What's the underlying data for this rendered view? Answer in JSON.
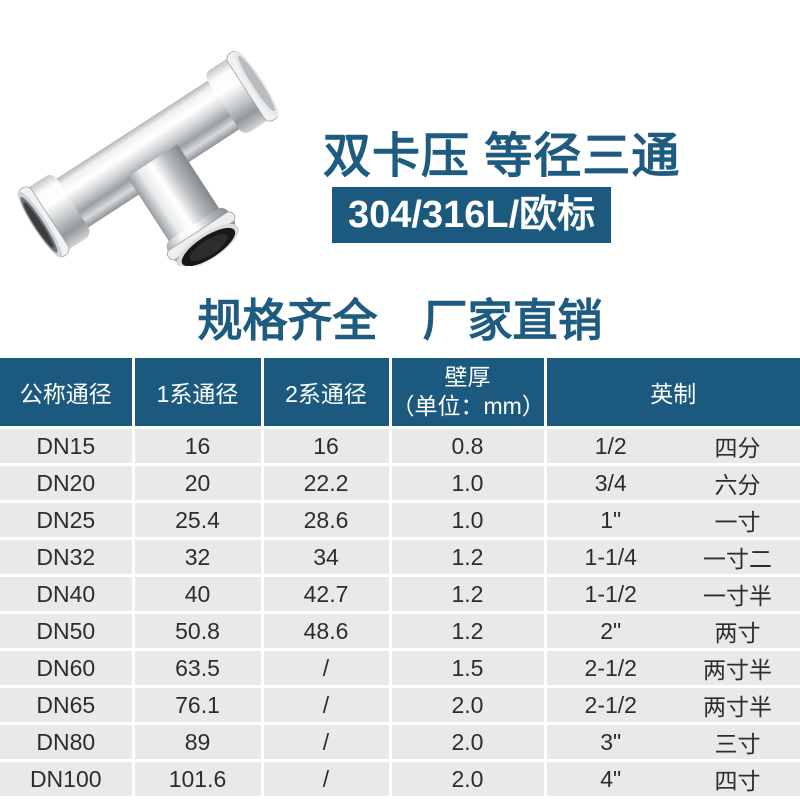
{
  "product": {
    "title": "双卡压 等径三通",
    "badge": "304/316L/欧标",
    "subtitle": "规格齐全　厂家直销"
  },
  "colors": {
    "accent_blue": "#1d5b81",
    "header_bg": "#1b5a7e",
    "row_bg": "#e9e9e9",
    "body_text": "#2d2d2d"
  },
  "table": {
    "header": {
      "nominal": "公称通径",
      "series1": "1系通径",
      "series2": "2系通径",
      "wall_thickness": "壁厚",
      "wall_thickness_unit": "（单位：mm）",
      "imperial": "英制"
    },
    "rows": [
      [
        "DN15",
        "16",
        "16",
        "0.8",
        "1/2",
        "四分"
      ],
      [
        "DN20",
        "20",
        "22.2",
        "1.0",
        "3/4",
        "六分"
      ],
      [
        "DN25",
        "25.4",
        "28.6",
        "1.0",
        "1\"",
        "一寸"
      ],
      [
        "DN32",
        "32",
        "34",
        "1.2",
        "1-1/4",
        "一寸二"
      ],
      [
        "DN40",
        "40",
        "42.7",
        "1.2",
        "1-1/2",
        "一寸半"
      ],
      [
        "DN50",
        "50.8",
        "48.6",
        "1.2",
        "2\"",
        "两寸"
      ],
      [
        "DN60",
        "63.5",
        "/",
        "1.5",
        "2-1/2",
        "两寸半"
      ],
      [
        "DN65",
        "76.1",
        "/",
        "2.0",
        "2-1/2",
        "两寸半"
      ],
      [
        "DN80",
        "89",
        "/",
        "2.0",
        "3\"",
        "三寸"
      ],
      [
        "DN100",
        "101.6",
        "/",
        "2.0",
        "4\"",
        "四寸"
      ]
    ]
  }
}
